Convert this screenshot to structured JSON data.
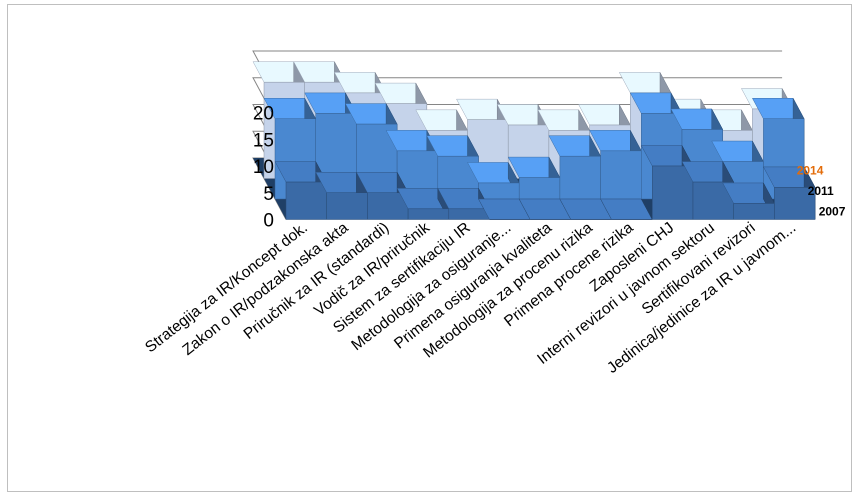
{
  "chart_data": {
    "type": "bar",
    "subtype": "3d-column",
    "ylim": [
      0,
      20
    ],
    "yticks": [
      "0",
      "5",
      "10",
      "15",
      "20"
    ],
    "grid": true,
    "categories": [
      "Strategija za IR/Koncept dok.",
      "Zakon o IR/podzakonska akta",
      "Priručnik za IR (standardi)",
      "Vodič za IR/priručnik",
      "Sistem za sertifikaciju IR",
      "Metodologija za osiguranje...",
      "Primena osiguranja kvaliteta",
      "Metodologija za procenu rizika",
      "Primena procene rizika",
      "Zaposleni CHJ",
      "Interni revizori u javnom sektoru",
      "Sertifikovani revizori",
      "Jedinica/jedinice za IR u javnom..."
    ],
    "series": [
      {
        "name": "2014",
        "color": "#c5d3ea",
        "label_color": "#e36c0a",
        "values": [
          18,
          18,
          16,
          14,
          9,
          11,
          10,
          9,
          10,
          16,
          11,
          9,
          13
        ]
      },
      {
        "name": "2011",
        "color": "#4a88d0",
        "label_color": "#000000",
        "values": [
          15,
          16,
          14,
          9,
          8,
          3,
          4,
          8,
          9,
          16,
          13,
          7,
          15
        ]
      },
      {
        "name": "2007",
        "color": "#3a6aa6",
        "label_color": "#000000",
        "values": [
          7,
          5,
          5,
          2,
          2,
          0,
          0,
          0,
          0,
          10,
          7,
          3,
          6
        ]
      }
    ],
    "legend": "series labels on right depth axis"
  }
}
